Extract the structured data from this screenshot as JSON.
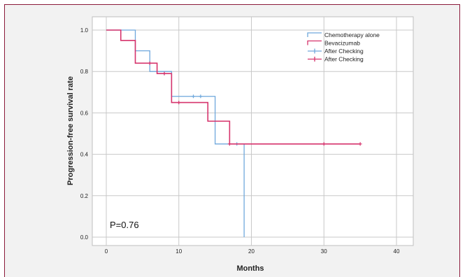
{
  "chart_data": {
    "type": "line",
    "xlabel": "Months",
    "ylabel": "Progression-free survival rate",
    "xlim": [
      0,
      40
    ],
    "ylim": [
      0.0,
      1.0
    ],
    "x_ticks": [
      "0",
      "10",
      "20",
      "30",
      "40"
    ],
    "y_ticks": [
      "0.0",
      "0.2",
      "0.4",
      "0.6",
      "0.8",
      "1.0"
    ],
    "grid": true,
    "legend_position": "top-right",
    "annotation": "P=0.76",
    "series": [
      {
        "name": "Chemotherapy alone",
        "color": "#6fa8dc",
        "steps": [
          [
            0,
            1.0
          ],
          [
            4,
            0.9
          ],
          [
            6,
            0.8
          ],
          [
            9,
            0.68
          ],
          [
            15,
            0.45
          ],
          [
            19,
            0.0
          ]
        ],
        "end_x": 19,
        "censor_legend": "After Checking",
        "censored": [
          [
            8,
            0.79
          ],
          [
            12,
            0.68
          ],
          [
            13,
            0.68
          ],
          [
            18,
            0.45
          ]
        ]
      },
      {
        "name": "Bevacizumab",
        "color": "#d6336c",
        "steps": [
          [
            0,
            1.0
          ],
          [
            2,
            0.95
          ],
          [
            4,
            0.84
          ],
          [
            7,
            0.79
          ],
          [
            9,
            0.65
          ],
          [
            14,
            0.56
          ],
          [
            17,
            0.45
          ]
        ],
        "end_x": 35,
        "censor_legend": "After Checking",
        "censored": [
          [
            6,
            0.84
          ],
          [
            8,
            0.79
          ],
          [
            10,
            0.65
          ],
          [
            17,
            0.45
          ],
          [
            30,
            0.45
          ],
          [
            35,
            0.45
          ]
        ]
      }
    ]
  }
}
